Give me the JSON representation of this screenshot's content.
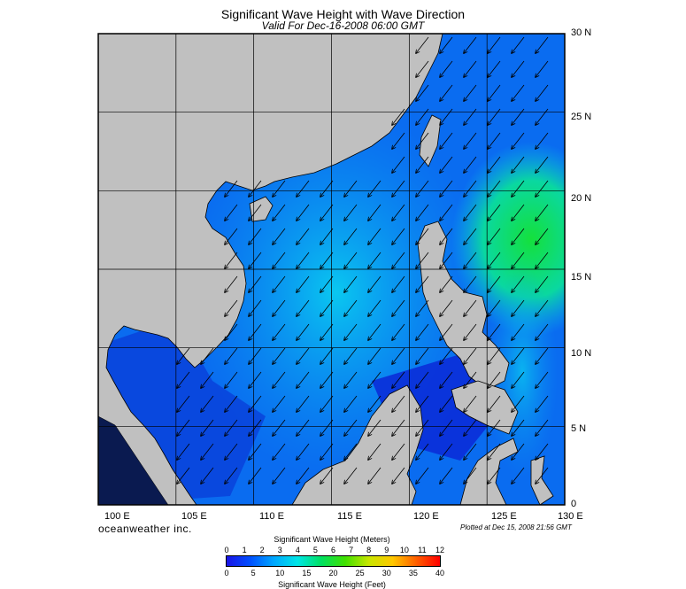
{
  "header": {
    "title": "Significant Wave Height with Wave Direction",
    "subtitle": "Valid For Dec-16-2008 06:00 GMT"
  },
  "map": {
    "lon_labels": [
      "100 E",
      "105 E",
      "110 E",
      "115 E",
      "120 E",
      "125 E",
      "130 E"
    ],
    "lat_labels": [
      "30 N",
      "25 N",
      "20 N",
      "15 N",
      "10 N",
      "5 N",
      "0"
    ],
    "extent": {
      "lon_min": 100,
      "lon_max": 130,
      "lat_min": 0,
      "lat_max": 30
    },
    "colors": {
      "land": "#c0c0c0",
      "sea_deep": "#0a3cd8",
      "sea_mid": "#0aa6f0",
      "sea_high": "#14e03c"
    }
  },
  "footer": {
    "brand": "oceanweather inc.",
    "plotted": "Plotted at Dec 15, 2008 21:56 GMT"
  },
  "colorbar": {
    "title_top": "Significant Wave Height (Meters)",
    "title_bottom": "Significant Wave Height (Feet)",
    "meters_ticks": [
      "0",
      "1",
      "2",
      "3",
      "4",
      "5",
      "6",
      "7",
      "8",
      "9",
      "10",
      "11",
      "12"
    ],
    "feet_ticks": [
      "0",
      "5",
      "10",
      "15",
      "20",
      "25",
      "30",
      "35",
      "40"
    ],
    "gradient": [
      "#1a14e6",
      "#0050ff",
      "#00a8ff",
      "#00e6e6",
      "#00e060",
      "#40e000",
      "#c8e600",
      "#ffc800",
      "#ff6000",
      "#ff0000"
    ]
  }
}
